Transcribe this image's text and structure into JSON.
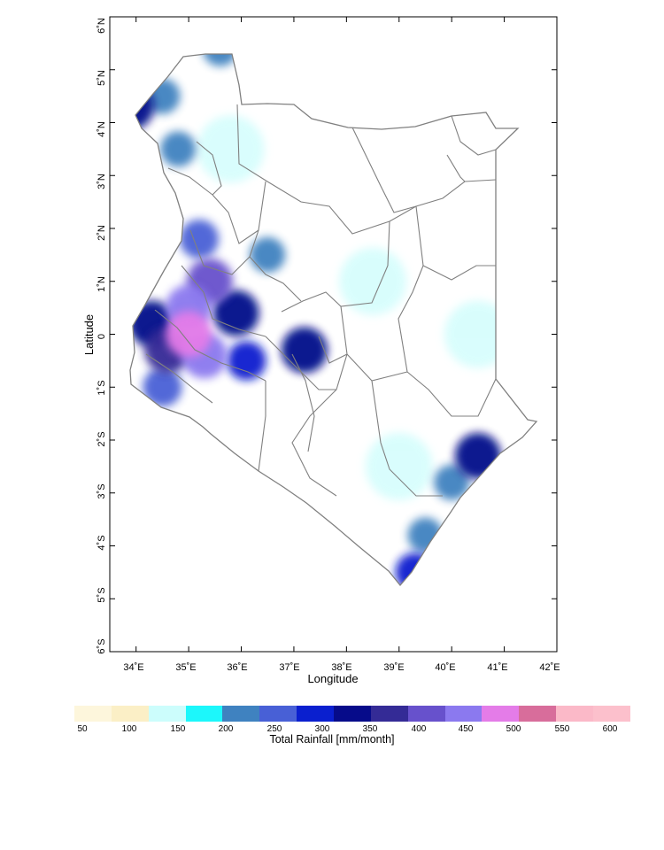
{
  "map": {
    "xlabel": "Longitude",
    "ylabel": "Latitude",
    "lon_ticks": [
      "34˚E",
      "35˚E",
      "36˚E",
      "37˚E",
      "38˚E",
      "39˚E",
      "40˚E",
      "41˚E",
      "42˚E"
    ],
    "lat_ticks": [
      "6˚N",
      "5˚N",
      "4˚N",
      "3˚N",
      "2˚N",
      "1˚N",
      "0",
      "1˚S",
      "2˚S",
      "3˚S",
      "4˚S",
      "5˚S",
      "6˚S"
    ],
    "extent": {
      "lon_min": 33.5,
      "lon_max": 42.0,
      "lat_min": -6.0,
      "lat_max": 6.0
    },
    "region": "Kenya",
    "boundary_color": "#808080"
  },
  "colorbar": {
    "title": "Total Rainfall [mm/month]",
    "tick_labels": [
      "50",
      "100",
      "150",
      "200",
      "250",
      "300",
      "350",
      "400",
      "450",
      "500",
      "550",
      "600"
    ],
    "colors": [
      "#fdf6dc",
      "#fbefc6",
      "#ccfdfc",
      "#1cf7fb",
      "#3f82c0",
      "#4860d6",
      "#0a1fcf",
      "#060b8a",
      "#342b96",
      "#6751cc",
      "#8b79ef",
      "#e47ce8",
      "#d86d9b",
      "#fbb9c8",
      "#fcc0cc"
    ]
  },
  "chart_data": {
    "type": "heatmap",
    "title": "",
    "xlabel": "Longitude",
    "ylabel": "Latitude",
    "xlim": [
      33.5,
      42.0
    ],
    "ylim": [
      -6.0,
      6.0
    ],
    "colorbar_label": "Total Rainfall [mm/month]",
    "levels": [
      50,
      100,
      150,
      200,
      250,
      300,
      350,
      400,
      450,
      500,
      550,
      600
    ],
    "cells": [
      {
        "lon": 35.0,
        "lat": 0.5,
        "value": 450
      },
      {
        "lon": 35.0,
        "lat": 0.0,
        "value": 500
      },
      {
        "lon": 35.3,
        "lat": -0.4,
        "value": 450
      },
      {
        "lon": 35.4,
        "lat": 1.0,
        "value": 400
      },
      {
        "lon": 34.6,
        "lat": -0.3,
        "value": 350
      },
      {
        "lon": 34.3,
        "lat": 0.2,
        "value": 320
      },
      {
        "lon": 35.9,
        "lat": 0.4,
        "value": 300
      },
      {
        "lon": 36.1,
        "lat": -0.5,
        "value": 260
      },
      {
        "lon": 35.2,
        "lat": 1.8,
        "value": 230
      },
      {
        "lon": 34.5,
        "lat": -1.0,
        "value": 220
      },
      {
        "lon": 37.2,
        "lat": -0.3,
        "value": 300
      },
      {
        "lon": 40.5,
        "lat": -2.3,
        "value": 320
      },
      {
        "lon": 39.3,
        "lat": -4.5,
        "value": 260
      },
      {
        "lon": 33.9,
        "lat": 4.3,
        "value": 330
      },
      {
        "lon": 34.5,
        "lat": 4.5,
        "value": 180
      },
      {
        "lon": 34.8,
        "lat": 3.5,
        "value": 160
      },
      {
        "lon": 39.5,
        "lat": -3.8,
        "value": 180
      },
      {
        "lon": 40.0,
        "lat": -2.8,
        "value": 150
      },
      {
        "lon": 36.5,
        "lat": 1.5,
        "value": 150
      },
      {
        "lon": 35.6,
        "lat": 5.4,
        "value": 170
      },
      {
        "lon": 35.8,
        "lat": 3.5,
        "value": 90
      },
      {
        "lon": 38.5,
        "lat": 1.0,
        "value": 70
      },
      {
        "lon": 40.5,
        "lat": 0.0,
        "value": 70
      },
      {
        "lon": 39.0,
        "lat": -2.5,
        "value": 60
      }
    ]
  }
}
